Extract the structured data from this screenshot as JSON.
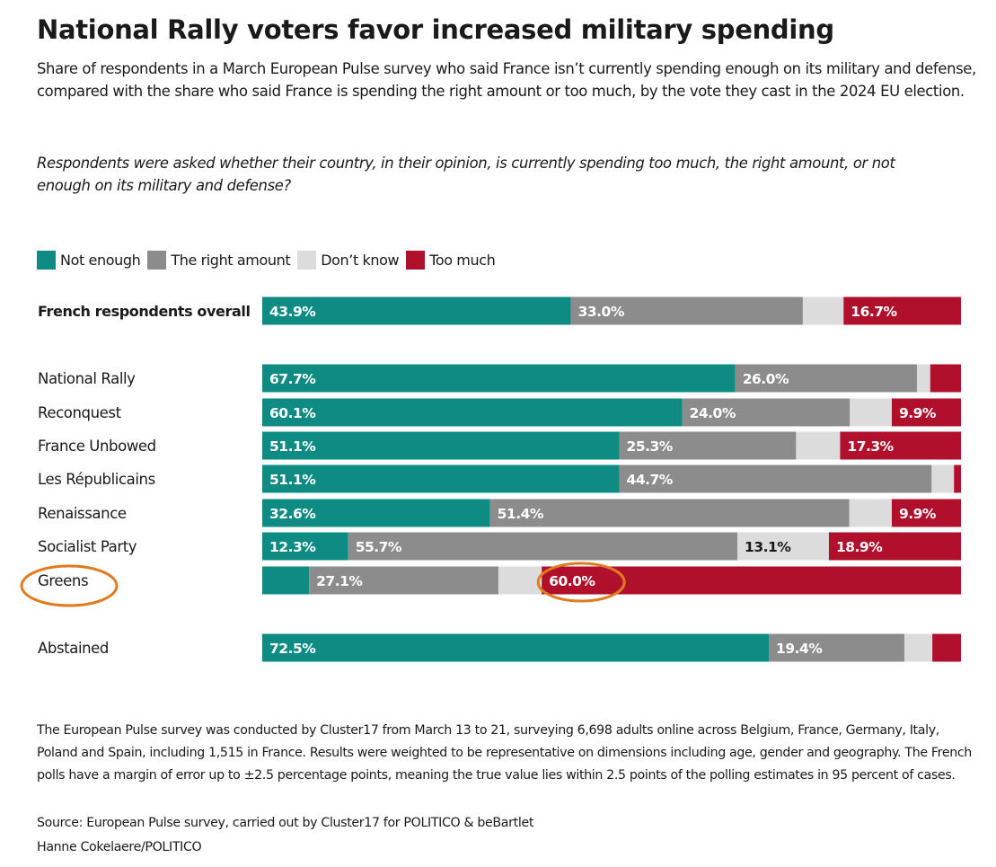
{
  "title": "National Rally voters favor increased military spending",
  "subtitle": "Share of respondents in a March European Pulse survey who said France isn’t currently spending enough on its military and defense, compared with the share who said France is spending the right amount or too much, by the vote they cast in the 2024 EU election.",
  "question": "Respondents were asked whether their country, in their opinion, is currently spending too much, the right amount, or not enough on its military and defense?",
  "legend": [
    {
      "label": "Not enough",
      "color": "#0e8c84"
    },
    {
      "label": "The right amount",
      "color": "#8c8c8c"
    },
    {
      "label": "Don’t know",
      "color": "#dcdcdc"
    },
    {
      "label": "Too much",
      "color": "#b0102b"
    }
  ],
  "chart_data": {
    "type": "bar",
    "orientation": "horizontal",
    "stacked": true,
    "percent_scale": true,
    "categories": [
      "French respondents overall",
      "National Rally",
      "Reconquest",
      "France Unbowed",
      "Les Républicains",
      "Renaissance",
      "Socialist Party",
      "Greens",
      "Abstained"
    ],
    "series": [
      {
        "name": "Not enough",
        "color": "#0e8c84",
        "values": [
          43.9,
          67.7,
          60.1,
          51.1,
          51.1,
          32.6,
          12.3,
          6.7,
          72.5
        ],
        "labels": [
          "43.9%",
          "67.7%",
          "60.1%",
          "51.1%",
          "51.1%",
          "32.6%",
          "12.3%",
          "",
          "72.5%"
        ]
      },
      {
        "name": "The right amount",
        "color": "#8c8c8c",
        "values": [
          33.0,
          26.0,
          24.0,
          25.3,
          44.7,
          51.4,
          55.7,
          27.1,
          19.4
        ],
        "labels": [
          "33.0%",
          "26.0%",
          "24.0%",
          "25.3%",
          "44.7%",
          "51.4%",
          "55.7%",
          "27.1%",
          "19.4%"
        ]
      },
      {
        "name": "Don’t know",
        "color": "#dcdcdc",
        "values": [
          5.8,
          1.9,
          6.0,
          6.3,
          3.2,
          6.1,
          13.1,
          6.2,
          4.0
        ],
        "labels": [
          "",
          "",
          "",
          "",
          "",
          "",
          "13.1%",
          "",
          ""
        ]
      },
      {
        "name": "Too much",
        "color": "#b0102b",
        "values": [
          16.7,
          4.4,
          9.9,
          17.3,
          1.0,
          9.9,
          18.9,
          60.0,
          4.1
        ],
        "labels": [
          "16.7%",
          "",
          "9.9%",
          "17.3%",
          "",
          "9.9%",
          "18.9%",
          "60.0%",
          ""
        ]
      }
    ],
    "highlights": [
      "Greens",
      "Greens – Too much 60.0%"
    ],
    "highlight_color": "#e07b1f"
  },
  "footnote": "The European Pulse survey was conducted by Cluster17 from March 13 to 21, surveying 6,698 adults online across Belgium, France, Germany, Italy, Poland and Spain, including 1,515 in France. Results were weighted to be representative on dimensions including age, gender and geography. The French polls have a margin of error up to ±2.5 percentage points, meaning the true value lies within 2.5 points of the polling estimates in 95 percent of cases.",
  "source": "Source: European Pulse survey, carried out by Cluster17 for POLITICO & beBartlet",
  "credit": "Hanne Cokelaere/POLITICO"
}
